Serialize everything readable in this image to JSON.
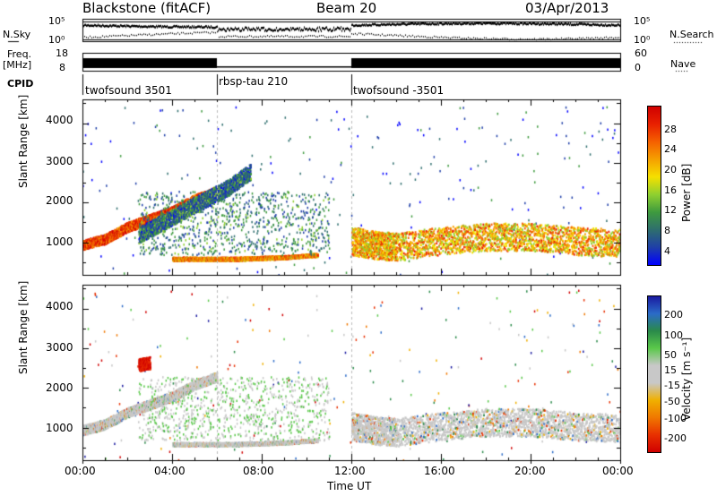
{
  "header": {
    "station": "Blackstone (fitACF)",
    "beam": "Beam 20",
    "date": "03/Apr/2013"
  },
  "left_labels": {
    "nsky": "N.Sky",
    "freq_line1": "Freq.",
    "freq_line2": "[MHz]",
    "cpid": "CPID"
  },
  "right_labels": {
    "nsearch": "N.Search",
    "nave": "Nave"
  },
  "nsky_ticks": {
    "top": "10^5",
    "bottom": "10^0"
  },
  "nsearch_ticks": {
    "top": "10^5",
    "bottom": "10^0"
  },
  "freq_ticks": {
    "top": "18",
    "bottom": "8"
  },
  "nave_ticks": {
    "top": "60",
    "bottom": "0"
  },
  "cpid_segments": [
    {
      "label": "twofsound 3501",
      "start_h": 0,
      "end_h": 6
    },
    {
      "label": "rbsp-tau 210",
      "start_h": 6,
      "end_h": 12
    },
    {
      "label": "twofsound -3501",
      "start_h": 12,
      "end_h": 24
    }
  ],
  "colors": {
    "power_scale": [
      "#0000ff",
      "#1f3fa8",
      "#2e6e6e",
      "#3e9a3e",
      "#8fd030",
      "#f5e000",
      "#f5a000",
      "#f56000",
      "#e82000",
      "#d00000"
    ],
    "velocity_scale": [
      "#1a1aa0",
      "#2b6bc8",
      "#2a8a4a",
      "#5ac84a",
      "#c8c8c8",
      "#c8c8c8",
      "#f0b000",
      "#f07800",
      "#e83000",
      "#d00000"
    ]
  },
  "chart_data": [
    {
      "type": "heatmap",
      "title": "",
      "xlabel": "Time UT",
      "ylabel": "Slant Range [km]",
      "xlim": [
        0,
        24
      ],
      "ylim": [
        180,
        4600
      ],
      "x_ticks": [
        "00:00",
        "04:00",
        "08:00",
        "12:00",
        "16:00",
        "20:00",
        "00:00"
      ],
      "y_ticks": [
        "1000",
        "2000",
        "3000",
        "4000"
      ],
      "colorbar": {
        "label": "Power [dB]",
        "range": [
          0,
          32
        ],
        "ticks": [
          "4",
          "8",
          "12",
          "16",
          "20",
          "24",
          "28"
        ]
      },
      "echo_bands": [
        {
          "t": [
            0.0,
            1.0,
            2.0,
            3.0,
            4.0,
            5.0,
            6.0
          ],
          "range": [
            950,
            1100,
            1400,
            1600,
            1800,
            2100,
            2300
          ],
          "width": 120,
          "power": 26
        },
        {
          "t": [
            2.5,
            3.5,
            4.5,
            5.5,
            6.5,
            7.5
          ],
          "range": [
            1200,
            1500,
            1800,
            2100,
            2400,
            2800
          ],
          "width": 200,
          "power": 8
        },
        {
          "t": [
            4.0,
            5.0,
            6.0,
            7.0,
            8.0,
            9.0,
            10.5
          ],
          "range": [
            600,
            600,
            600,
            600,
            620,
            640,
            700
          ],
          "width": 40,
          "power": 22
        },
        {
          "t": [
            12.0,
            13.0,
            14.0,
            16.0,
            18.0,
            20.0,
            22.0,
            24.0
          ],
          "range": [
            1050,
            950,
            900,
            1050,
            1150,
            1150,
            1050,
            1000
          ],
          "width": 350,
          "power": 20
        }
      ]
    },
    {
      "type": "heatmap",
      "title": "",
      "xlabel": "Time UT",
      "ylabel": "Slant Range [km]",
      "xlim": [
        0,
        24
      ],
      "ylim": [
        180,
        4600
      ],
      "x_ticks": [
        "00:00",
        "04:00",
        "08:00",
        "12:00",
        "16:00",
        "20:00",
        "00:00"
      ],
      "y_ticks": [
        "1000",
        "2000",
        "3000",
        "4000"
      ],
      "colorbar": {
        "label": "Velocity [m s^-1]",
        "range": [
          -250,
          250
        ],
        "ticks": [
          "200",
          "100",
          "50",
          "15",
          "-15",
          "-50",
          "-100",
          "-200"
        ]
      },
      "echo_bands": [
        {
          "t": [
            0.0,
            1.0,
            2.0,
            3.0,
            4.0,
            5.0,
            6.0
          ],
          "range": [
            950,
            1100,
            1400,
            1600,
            1800,
            2100,
            2300
          ],
          "width": 120,
          "velocity": 0
        },
        {
          "t": [
            2.5,
            3.0
          ],
          "range": [
            2600,
            2650
          ],
          "width": 150,
          "velocity": -200
        },
        {
          "t": [
            4.0,
            5.0,
            6.0,
            7.0,
            8.0,
            9.0,
            10.5
          ],
          "range": [
            600,
            600,
            600,
            600,
            620,
            640,
            700
          ],
          "width": 40,
          "velocity": 0
        },
        {
          "t": [
            12.0,
            13.0,
            14.0,
            16.0,
            18.0,
            20.0,
            22.0,
            24.0
          ],
          "range": [
            1050,
            950,
            900,
            1050,
            1150,
            1150,
            1050,
            1000
          ],
          "width": 350,
          "velocity": 0
        }
      ]
    }
  ]
}
